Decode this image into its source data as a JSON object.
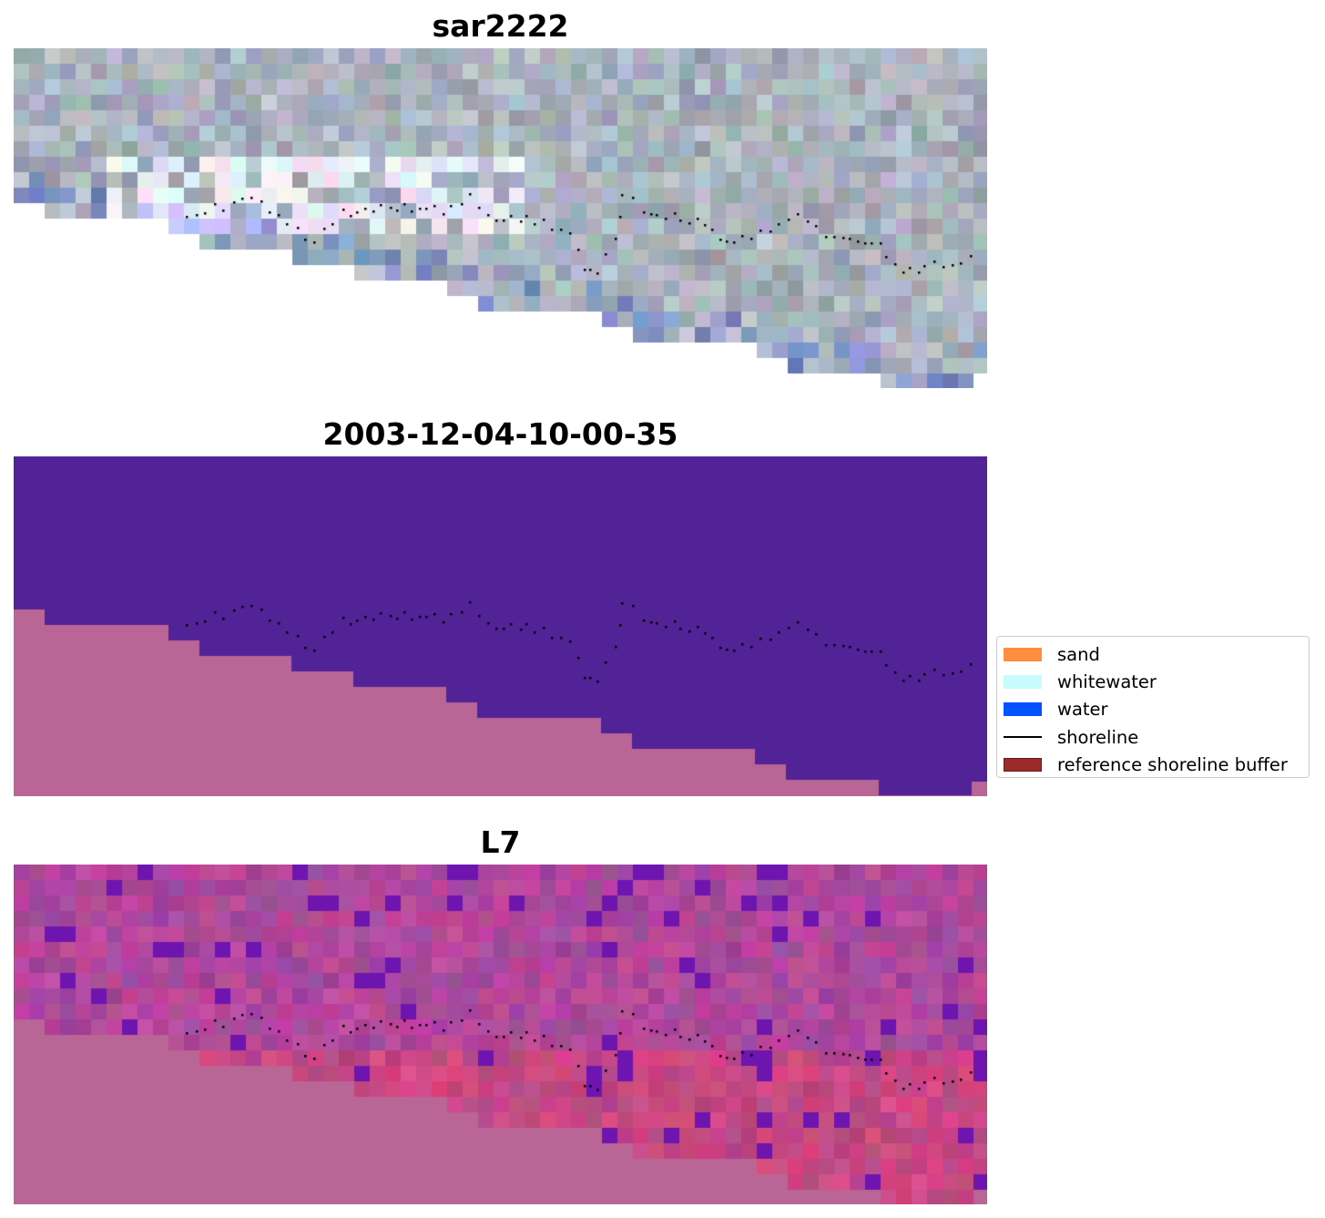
{
  "panels": [
    {
      "title": "sar2222",
      "kind": "rgb"
    },
    {
      "title": "2003-12-04-10-00-35",
      "kind": "classified"
    },
    {
      "title": "L7",
      "kind": "index"
    }
  ],
  "legend": {
    "items": [
      {
        "label": "sand",
        "color": "#ff8c3f",
        "shape": "patch"
      },
      {
        "label": "whitewater",
        "color": "#c8fcfc",
        "shape": "patch"
      },
      {
        "label": "water",
        "color": "#0052ff",
        "shape": "patch"
      },
      {
        "label": "shoreline",
        "color": "#000000",
        "shape": "line"
      },
      {
        "label": "reference shoreline buffer",
        "color": "#9b2b2b",
        "shape": "patch"
      }
    ]
  },
  "colors": {
    "no_data": "#b96595",
    "classified_water": "#522397",
    "shoreline_points": "#000000"
  }
}
